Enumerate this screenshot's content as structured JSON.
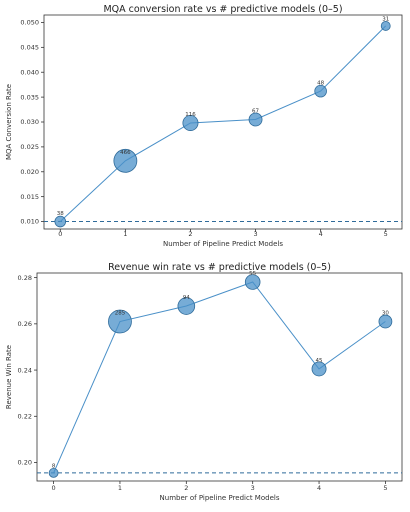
{
  "chart_data": [
    {
      "type": "scatter",
      "title": "MQA conversion rate vs # predictive models (0–5)",
      "xlabel": "Number of Pipeline Predict Models",
      "ylabel": "MQA Conversion Rate",
      "x": [
        0,
        1,
        2,
        3,
        4,
        5
      ],
      "x_ticks": [
        "0",
        "1",
        "2",
        "3",
        "4",
        "5"
      ],
      "xlim": [
        -0.25,
        5.25
      ],
      "ylim": [
        0.0085,
        0.0515
      ],
      "y_ticks": [
        "0.010",
        "0.015",
        "0.020",
        "0.025",
        "0.030",
        "0.035",
        "0.040",
        "0.045",
        "0.050"
      ],
      "y_tick_values": [
        0.01,
        0.015,
        0.02,
        0.025,
        0.03,
        0.035,
        0.04,
        0.045,
        0.05
      ],
      "values": [
        0.01,
        0.0222,
        0.0298,
        0.0305,
        0.0362,
        0.0493
      ],
      "counts": [
        38,
        466,
        116,
        67,
        48,
        31
      ],
      "point_labels": [
        "38",
        "466",
        "116",
        "67",
        "48",
        "31"
      ],
      "baseline": 0.01,
      "color": "#4a90c8"
    },
    {
      "type": "scatter",
      "title": "Revenue win rate vs # predictive models (0–5)",
      "xlabel": "Number of Pipeline Predict Models",
      "ylabel": "Revenue Win Rate",
      "x": [
        0,
        1,
        2,
        3,
        4,
        5
      ],
      "x_ticks": [
        "0",
        "1",
        "2",
        "3",
        "4",
        "5"
      ],
      "xlim": [
        -0.25,
        5.25
      ],
      "ylim": [
        0.192,
        0.282
      ],
      "y_ticks": [
        "0.20",
        "0.22",
        "0.24",
        "0.26",
        "0.28"
      ],
      "y_tick_values": [
        0.2,
        0.22,
        0.24,
        0.26,
        0.28
      ],
      "values": [
        0.1955,
        0.261,
        0.2677,
        0.2781,
        0.2405,
        0.261
      ],
      "counts": [
        8,
        285,
        94,
        55,
        45,
        30
      ],
      "point_labels": [
        "8",
        "285",
        "94",
        "55",
        "45",
        "30"
      ],
      "baseline": 0.1955,
      "color": "#4a90c8"
    }
  ]
}
